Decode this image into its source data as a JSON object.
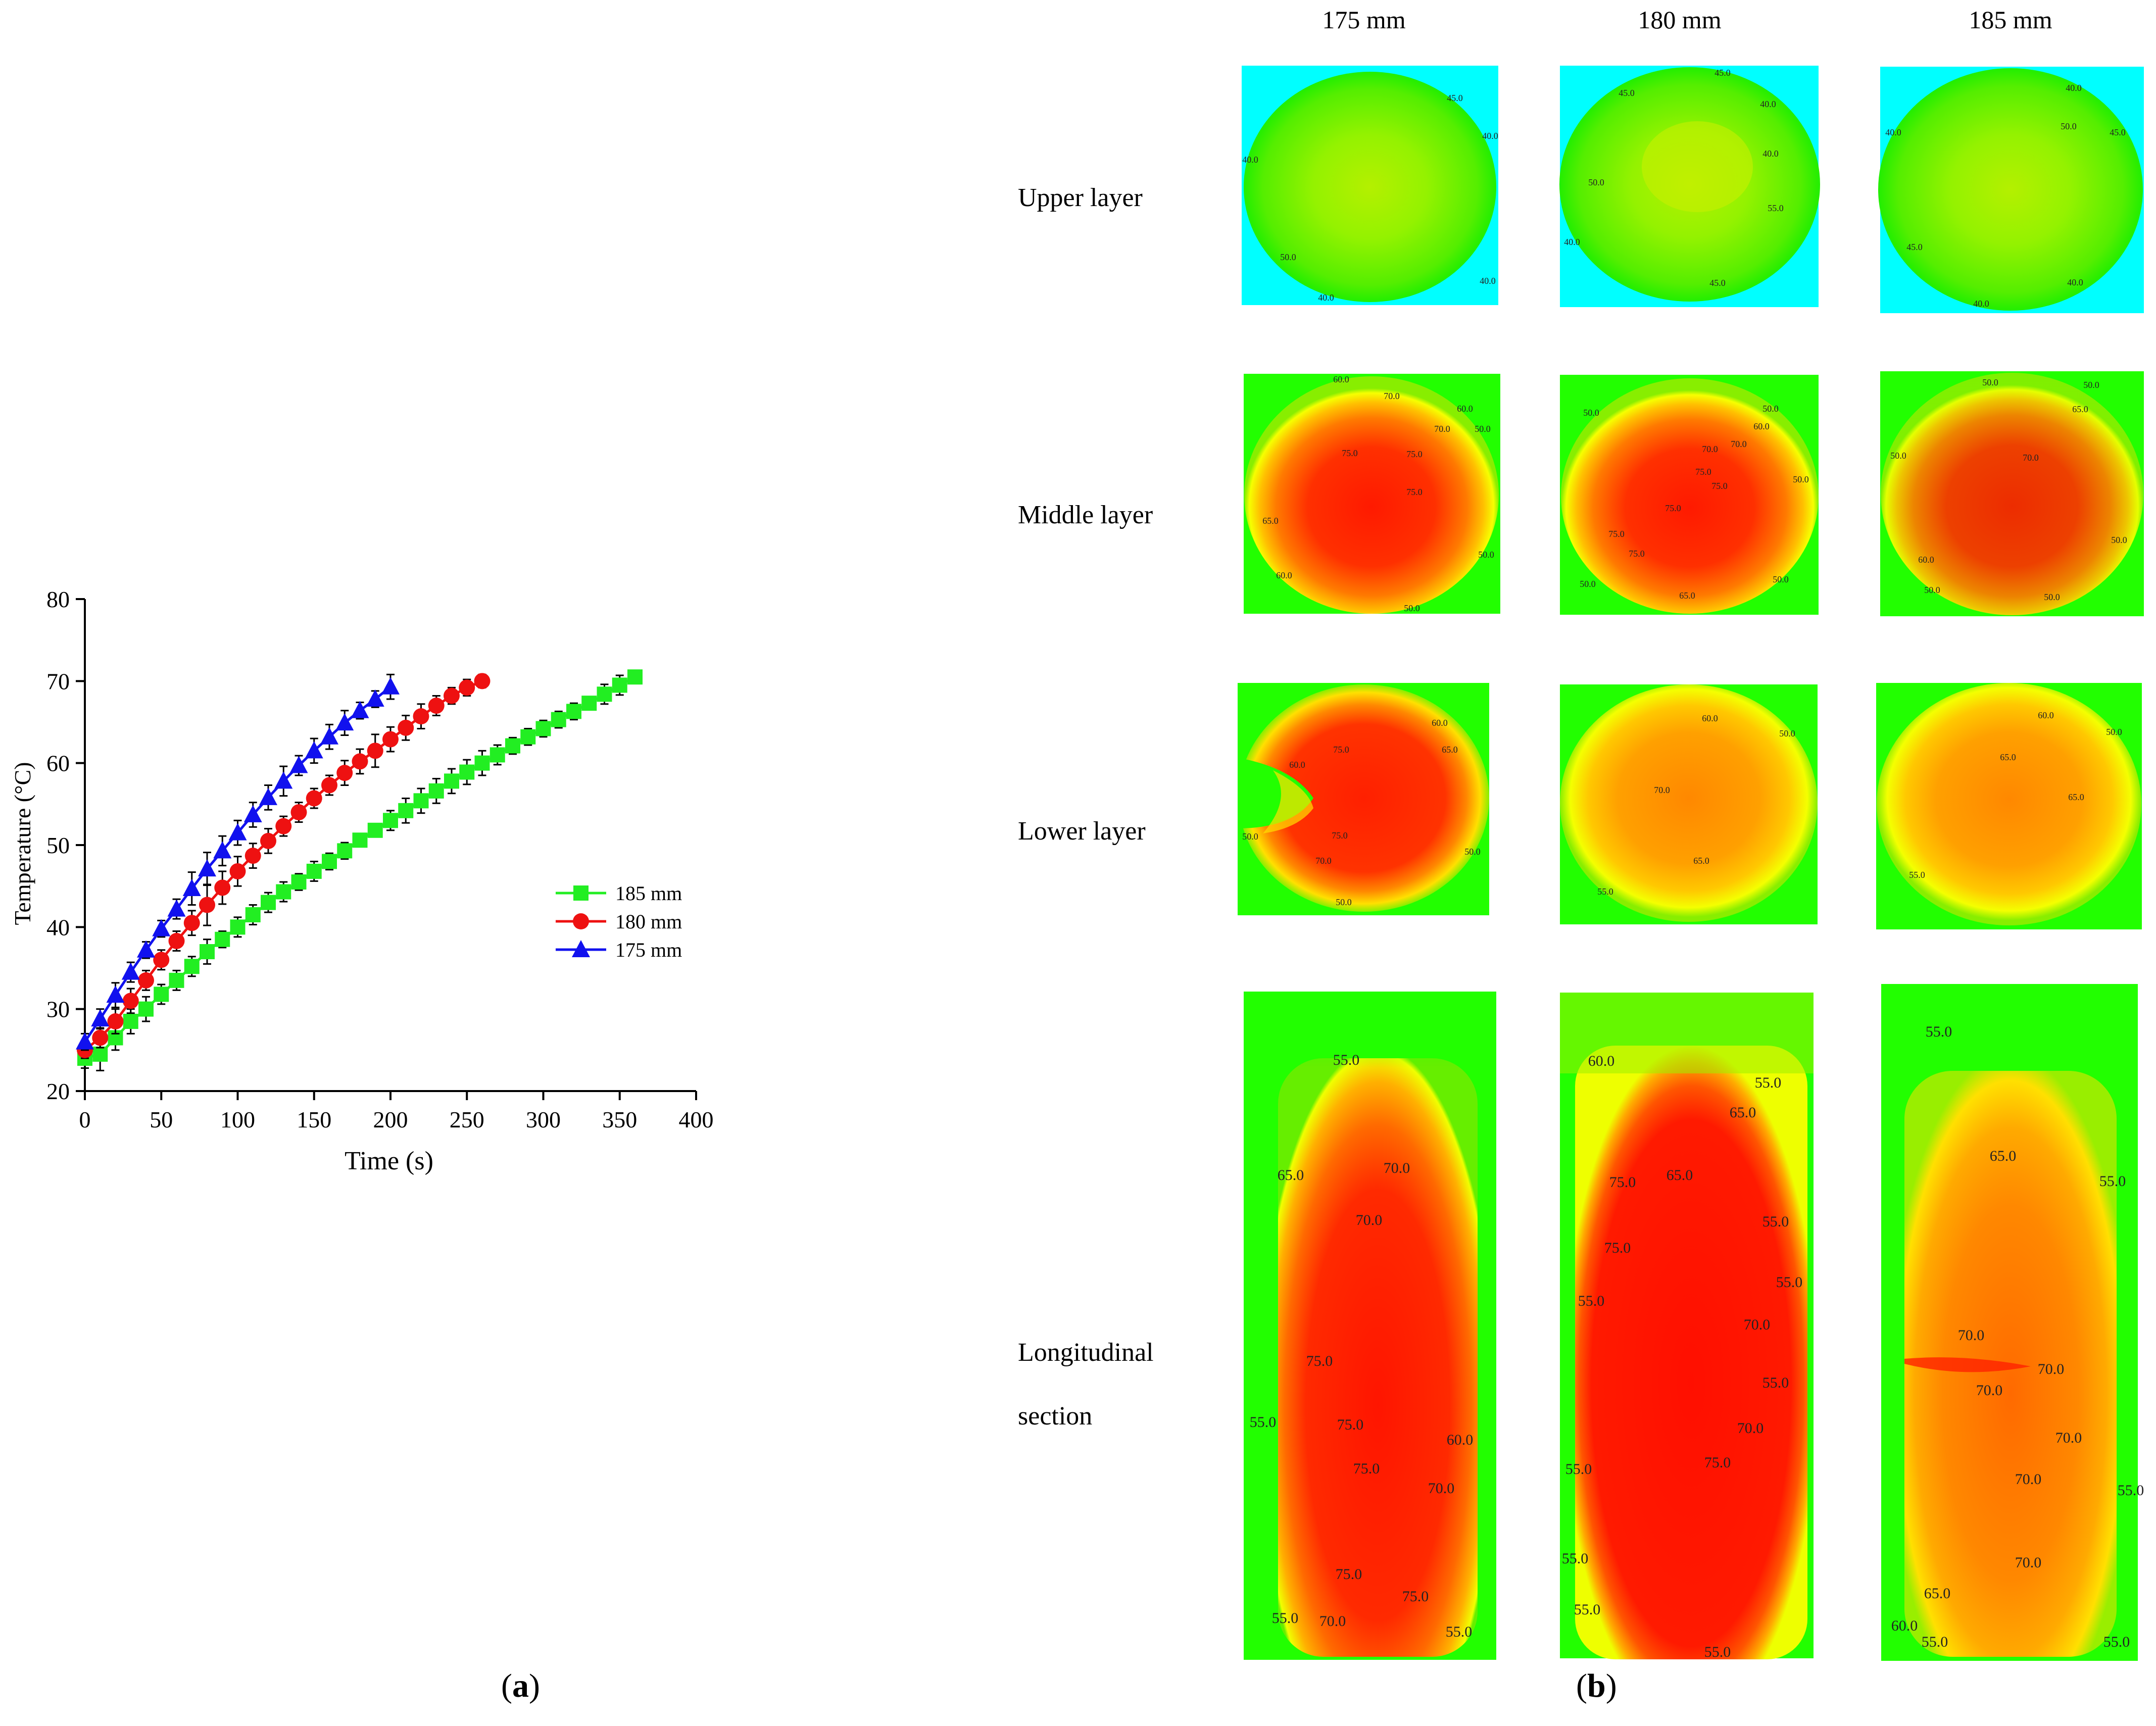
{
  "chart_data": [
    {
      "type": "line",
      "xlabel": "Time (s)",
      "ylabel": "Temperature (°C)",
      "xlim": [
        0,
        400
      ],
      "ylim": [
        20,
        80
      ],
      "xticks": [
        "0",
        "50",
        "100",
        "150",
        "200",
        "250",
        "300",
        "350",
        "400"
      ],
      "yticks": [
        "20",
        "30",
        "40",
        "50",
        "60",
        "70",
        "80"
      ],
      "legend_position": "right",
      "series": [
        {
          "name": "185 mm",
          "color": "#22ee22",
          "marker": "square",
          "x": [
            0,
            10,
            20,
            30,
            40,
            50,
            60,
            70,
            80,
            90,
            100,
            110,
            120,
            130,
            140,
            150,
            160,
            170,
            180,
            190,
            200,
            210,
            220,
            230,
            240,
            250,
            260,
            270,
            280,
            290,
            300,
            310,
            320,
            330,
            340,
            350,
            360
          ],
          "y": [
            24.0,
            24.5,
            26.5,
            28.5,
            30.0,
            31.8,
            33.5,
            35.2,
            37.0,
            38.5,
            40.0,
            41.5,
            43.0,
            44.3,
            45.5,
            46.8,
            48.0,
            49.3,
            50.6,
            51.8,
            53.0,
            54.2,
            55.4,
            56.6,
            57.8,
            58.9,
            60.0,
            61.0,
            62.1,
            63.2,
            64.2,
            65.3,
            66.3,
            67.3,
            68.4,
            69.5,
            70.5
          ],
          "error": [
            1.2,
            2.0,
            1.5,
            1.5,
            1.5,
            1.2,
            1.2,
            1.2,
            1.5,
            1.0,
            1.2,
            1.2,
            1.2,
            1.2,
            1.0,
            1.2,
            1.0,
            1.0,
            0.8,
            0.8,
            1.2,
            1.5,
            1.5,
            1.5,
            1.5,
            1.5,
            1.5,
            1.2,
            1.0,
            1.0,
            1.0,
            1.0,
            1.0,
            0.8,
            1.2,
            1.2,
            0.8
          ]
        },
        {
          "name": "180 mm",
          "color": "#ee1111",
          "marker": "circle",
          "x": [
            0,
            10,
            20,
            30,
            40,
            50,
            60,
            70,
            80,
            90,
            100,
            110,
            120,
            130,
            140,
            150,
            160,
            170,
            180,
            190,
            200,
            210,
            220,
            230,
            240,
            250,
            260
          ],
          "y": [
            25.0,
            26.5,
            28.5,
            31.0,
            33.5,
            36.0,
            38.3,
            40.5,
            42.7,
            44.8,
            46.8,
            48.7,
            50.5,
            52.3,
            54.0,
            55.7,
            57.3,
            58.8,
            60.2,
            61.5,
            62.9,
            64.3,
            65.7,
            67.0,
            68.2,
            69.2,
            70.0
          ],
          "error": [
            1.0,
            1.2,
            1.5,
            1.5,
            1.2,
            1.2,
            1.2,
            1.5,
            2.5,
            2.0,
            1.8,
            1.5,
            1.5,
            1.2,
            1.2,
            1.2,
            1.2,
            1.5,
            1.5,
            2.0,
            1.5,
            1.5,
            1.5,
            1.2,
            1.0,
            1.0,
            0.8
          ]
        },
        {
          "name": "175 mm",
          "color": "#1111ee",
          "marker": "triangle",
          "x": [
            0,
            10,
            20,
            30,
            40,
            50,
            60,
            70,
            80,
            90,
            100,
            110,
            120,
            130,
            140,
            150,
            160,
            170,
            180,
            190,
            200
          ],
          "y": [
            26.0,
            28.8,
            31.7,
            34.5,
            37.2,
            39.8,
            42.2,
            44.7,
            47.1,
            49.3,
            51.5,
            53.7,
            55.8,
            57.8,
            59.7,
            61.5,
            63.2,
            64.9,
            66.4,
            67.8,
            69.3
          ],
          "error": [
            1.0,
            1.2,
            1.5,
            1.2,
            1.0,
            1.0,
            1.2,
            2.0,
            2.0,
            1.8,
            1.5,
            1.5,
            1.5,
            1.8,
            1.2,
            1.5,
            1.5,
            1.5,
            1.0,
            1.0,
            1.5
          ]
        }
      ]
    },
    {
      "type": "heatmap",
      "columns": [
        "175 mm",
        "180 mm",
        "185 mm"
      ],
      "rows": [
        "Upper layer",
        "Middle layer",
        "Lower layer",
        "Longitudinal section"
      ],
      "colors": {
        "background_upper": "#00ffff",
        "background": "#22ff00",
        "green": "#66ee00",
        "yellow": "#ffff00",
        "orange": "#ffa500",
        "red": "#ff1100"
      },
      "contour_labels": [
        [
          [
            "45.0",
            "40.0",
            "40.0",
            "50.0",
            "40.0",
            "40.0"
          ],
          [
            "45.0",
            "45.0",
            "40.0",
            "40.0",
            "50.0",
            "55.0",
            "40.0",
            "45.0"
          ],
          [
            "40.0",
            "40.0",
            "50.0",
            "45.0",
            "45.0",
            "40.0",
            "40.0"
          ]
        ],
        [
          [
            "60.0",
            "70.0",
            "60.0",
            "70.0",
            "50.0",
            "75.0",
            "75.0",
            "75.0",
            "65.0",
            "60.0",
            "50.0",
            "50.0"
          ],
          [
            "50.0",
            "50.0",
            "60.0",
            "70.0",
            "70.0",
            "75.0",
            "75.0",
            "50.0",
            "75.0",
            "75.0",
            "75.0",
            "50.0",
            "65.0",
            "50.0"
          ],
          [
            "50.0",
            "50.0",
            "65.0",
            "50.0",
            "70.0",
            "50.0",
            "60.0",
            "50.0",
            "50.0"
          ]
        ],
        [
          [
            "60.0",
            "75.0",
            "65.0",
            "60.0",
            "75.0",
            "70.0",
            "50.0",
            "50.0",
            "50.0"
          ],
          [
            "60.0",
            "50.0",
            "70.0",
            "65.0",
            "55.0"
          ],
          [
            "60.0",
            "50.0",
            "65.0",
            "65.0",
            "55.0"
          ]
        ],
        [
          [
            "55.0",
            "65.0",
            "70.0",
            "70.0",
            "75.0",
            "55.0",
            "75.0",
            "75.0",
            "60.0",
            "70.0",
            "75.0",
            "75.0",
            "55.0",
            "70.0",
            "55.0"
          ],
          [
            "60.0",
            "55.0",
            "65.0",
            "75.0",
            "65.0",
            "55.0",
            "75.0",
            "55.0",
            "55.0",
            "70.0",
            "55.0",
            "70.0",
            "55.0",
            "75.0",
            "55.0",
            "55.0",
            "55.0"
          ],
          [
            "55.0",
            "65.0",
            "55.0",
            "70.0",
            "70.0",
            "70.0",
            "70.0",
            "55.0",
            "70.0",
            "70.0",
            "65.0",
            "60.0",
            "55.0",
            "55.0"
          ]
        ]
      ]
    }
  ],
  "labels": {
    "panel_a": "a",
    "panel_b": "b",
    "open_paren": "(",
    "close_paren": ")"
  }
}
